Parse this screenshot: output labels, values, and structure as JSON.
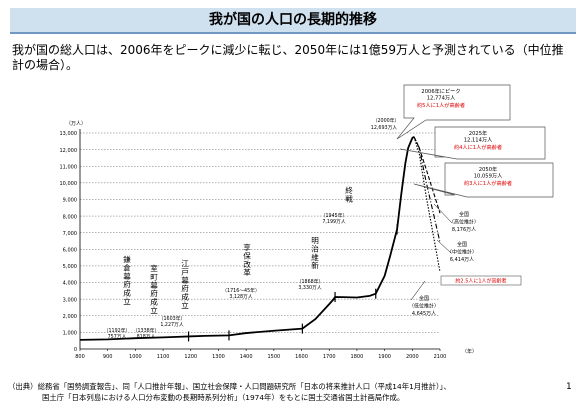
{
  "title": "我が国の人口の長期的推移",
  "lead": "我が国の総人口は、2006年をピークに減少に転じ、2050年には1億59万人と予測されている（中位推計の場合）。",
  "footer": {
    "line1": "（出典）総務省「国勢調査報告」、同「人口推計年報」、国立社会保障・人口問題研究所「日本の将来推計人口（平成14年1月推計）」、",
    "line2": "国土庁「日本列島における人口分布変動の長期時系列分析」（1974年）をもとに国土交通省国土計画局作成。"
  },
  "page_number": "1",
  "colors": {
    "title_bg": "#cfe0ef",
    "title_border": "#6f98c2",
    "alert_text": "#e00000",
    "line": "#000000"
  },
  "chart_data": {
    "type": "line",
    "yunit": "（万人）",
    "xunit": "（年）",
    "xlim": [
      800,
      2100
    ],
    "ylim": [
      0,
      13000
    ],
    "xticks": [
      800,
      900,
      1000,
      1100,
      1200,
      1300,
      1400,
      1500,
      1600,
      1700,
      1800,
      1900,
      2000,
      2100
    ],
    "yticks": [
      0,
      1000,
      2000,
      3000,
      4000,
      5000,
      6000,
      7000,
      8000,
      9000,
      10000,
      11000,
      12000,
      13000
    ],
    "grid": true,
    "series": [
      {
        "id": "history",
        "style": "solid",
        "points": [
          [
            800,
            551
          ],
          [
            900,
            580
          ],
          [
            1000,
            650
          ],
          [
            1100,
            700
          ],
          [
            1150,
            730
          ],
          [
            1192,
            757
          ],
          [
            1250,
            790
          ],
          [
            1338,
            818
          ],
          [
            1400,
            960
          ],
          [
            1500,
            1100
          ],
          [
            1603,
            1227
          ],
          [
            1650,
            1800
          ],
          [
            1700,
            2700
          ],
          [
            1716,
            3000
          ],
          [
            1721,
            3128
          ],
          [
            1750,
            3120
          ],
          [
            1800,
            3100
          ],
          [
            1846,
            3200
          ],
          [
            1868,
            3330
          ],
          [
            1900,
            4400
          ],
          [
            1920,
            5600
          ],
          [
            1945,
            7199
          ],
          [
            1960,
            9300
          ],
          [
            1975,
            11190
          ],
          [
            1985,
            12100
          ],
          [
            2000,
            12693
          ],
          [
            2006,
            12774
          ]
        ]
      },
      {
        "id": "high",
        "name": "全国（高位推計）",
        "style": "dashed",
        "points": [
          [
            2006,
            12774
          ],
          [
            2025,
            12114
          ],
          [
            2050,
            10825
          ],
          [
            2100,
            8176
          ]
        ]
      },
      {
        "id": "medium",
        "name": "全国（中位推計）",
        "style": "dashdot",
        "points": [
          [
            2006,
            12774
          ],
          [
            2025,
            12114
          ],
          [
            2050,
            10059
          ],
          [
            2100,
            6414
          ]
        ]
      },
      {
        "id": "low",
        "name": "全国（低位推計）",
        "style": "dotted",
        "points": [
          [
            2006,
            12774
          ],
          [
            2025,
            11770
          ],
          [
            2050,
            9203
          ],
          [
            2100,
            4645
          ]
        ]
      }
    ],
    "tick_marks": [
      1192,
      1338,
      1603,
      1721,
      1868,
      1945
    ],
    "event_labels": [
      {
        "x": 1192,
        "vertical": "鎌倉幕府成立",
        "label": "（1192年）",
        "value": "757万人"
      },
      {
        "x": 1338,
        "vertical": "室町幕府成立",
        "label": "（1338年）",
        "value": "818万人"
      },
      {
        "x": 1603,
        "vertical": "江戸幕府成立",
        "label": "（1603年）",
        "value": "1,227万人"
      },
      {
        "x": 1721,
        "vertical": "享保改革",
        "label": "（1716～45年）",
        "value": "3,128万人"
      },
      {
        "x": 1868,
        "vertical": "明治維新",
        "label": "（1868年）",
        "value": "3,330万人"
      },
      {
        "x": 1945,
        "vertical": "終戦",
        "label": "（1945年）",
        "value": "7,199万人"
      }
    ],
    "peak_2000": {
      "label": "（2000年）",
      "value": "12,693万人"
    },
    "callouts": [
      {
        "lines": [
          "2006年にピーク",
          "12,774万人"
        ],
        "alert": "約5人に1人が高齢者"
      },
      {
        "lines": [
          "2025年",
          "12,114万人"
        ],
        "alert": "約4人に1人が高齢者"
      },
      {
        "lines": [
          "2050年",
          "10,059万人"
        ],
        "alert": "約3人に1人が高齢者"
      }
    ],
    "end_labels": [
      {
        "lines": [
          "全国",
          "（高位推計）",
          "8,176万人"
        ]
      },
      {
        "lines": [
          "全国",
          "（中位推計）",
          "6,414万人"
        ],
        "alert": "約2.5人に1人が高齢者"
      },
      {
        "lines": [
          "全国",
          "（低位推計）",
          "4,645万人"
        ]
      }
    ]
  }
}
